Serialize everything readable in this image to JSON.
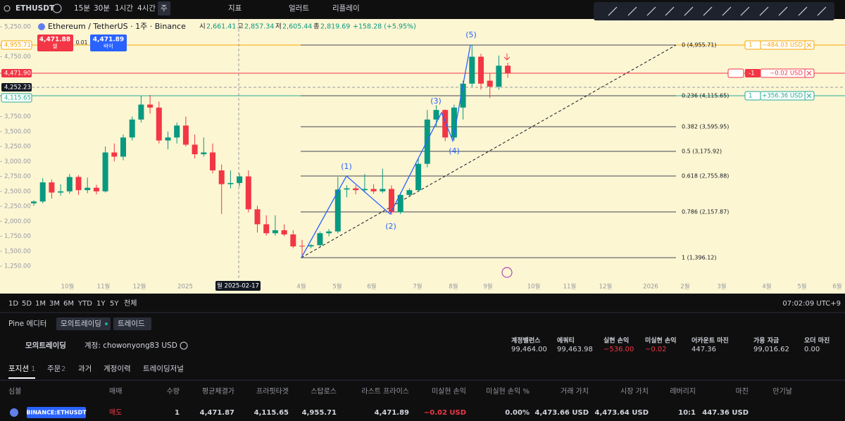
{
  "toolbar": {
    "symbol": "ETHUSDT",
    "intervals": [
      "15분",
      "30분",
      "1시간",
      "4시간",
      "주"
    ],
    "indicators": "지표",
    "alert": "얼러트",
    "replay": "리플레이"
  },
  "legend": {
    "title": "Ethereum / TetherUS · 1주 · Binance",
    "open_label": "시",
    "open": "2,661.41",
    "high_label": "고",
    "high": "2,857.34",
    "low_label": "저",
    "low": "2,605.44",
    "close_label": "종",
    "close": "2,819.69",
    "change": "+158.28 (+5.95%)"
  },
  "trade_buttons": {
    "sell_price": "4,471.88",
    "sell": "셀",
    "spread": "0.01",
    "buy_price": "4,471.89",
    "buy": "바이"
  },
  "price_labels": [
    "4,955.71",
    "4,471.90",
    "4,252.23",
    "4,115.65"
  ],
  "order_lines": [
    {
      "qty": "1",
      "pnl": "−484.03 USD"
    },
    {
      "qty": "-1",
      "pnl": "−0.02 USD"
    },
    {
      "qty": "1",
      "pnl": "+356.36 USD"
    }
  ],
  "fib_levels": [
    "0 (4,955.71)",
    "0.236 (4,115.65)",
    "0.382 (3,595.95)",
    "0.5 (3,175.92)",
    "0.618 (2,755.88)",
    "0.786 (2,157.87)",
    "1 (1,396.12)"
  ],
  "waves": [
    "(1)",
    "(2)",
    "(3)",
    "(4)",
    "(5)"
  ],
  "crosshair_date": "월 2025-02-17",
  "chart_data": {
    "type": "candlestick",
    "open": [
      2300,
      2330,
      2650,
      2480,
      2500,
      2740,
      2520,
      2560,
      2500,
      3150,
      3080,
      3400,
      3700,
      3950,
      3900,
      3350,
      3400,
      3600,
      3280,
      3120,
      3150,
      2850,
      2620,
      2640,
      2750,
      2200,
      1950,
      1800,
      1850,
      1780,
      1590,
      1580,
      1600,
      1800,
      1830,
      2530,
      2550,
      2520,
      2540,
      2500,
      2540,
      2150,
      2440,
      2520,
      2960,
      3700,
      3860,
      3400,
      3900,
      4300,
      4750,
      4350,
      4250,
      4600
    ],
    "high": [
      2350,
      2720,
      2700,
      2620,
      2790,
      2770,
      2730,
      2610,
      3250,
      3300,
      3450,
      3750,
      4100,
      4110,
      4000,
      3500,
      3650,
      3750,
      3450,
      3400,
      3300,
      2950,
      2850,
      2800,
      2850,
      2260,
      2100,
      2100,
      1950,
      1850,
      1690,
      1620,
      1830,
      1870,
      2740,
      2600,
      2600,
      2790,
      2620,
      2880,
      2600,
      2480,
      2550,
      3050,
      3860,
      3940,
      3870,
      3950,
      4350,
      4955,
      4800,
      4480,
      4770,
      4650
    ],
    "low": [
      2260,
      2300,
      2380,
      2430,
      2460,
      2440,
      2470,
      2450,
      2480,
      3000,
      3020,
      3350,
      3650,
      3800,
      3300,
      3200,
      3300,
      3250,
      3050,
      3080,
      2800,
      2120,
      2550,
      2580,
      2150,
      1810,
      1760,
      1760,
      1750,
      1550,
      1396,
      1550,
      1580,
      1750,
      1800,
      2400,
      2450,
      2480,
      2460,
      2470,
      2110,
      2120,
      2420,
      2500,
      2900,
      3580,
      3340,
      3350,
      3700,
      4250,
      4200,
      4060,
      4200,
      4400
    ],
    "close": [
      2330,
      2650,
      2480,
      2500,
      2740,
      2520,
      2560,
      2500,
      3150,
      3080,
      3400,
      3700,
      3950,
      3900,
      3350,
      3400,
      3600,
      3280,
      3120,
      3150,
      2850,
      2620,
      2640,
      2750,
      2200,
      1950,
      1800,
      1850,
      1780,
      1580,
      1580,
      1600,
      1800,
      1830,
      2530,
      2550,
      2520,
      2540,
      2500,
      2540,
      2150,
      2440,
      2520,
      2960,
      3700,
      3860,
      3400,
      3900,
      4300,
      4750,
      4300,
      4250,
      4600,
      4472
    ],
    "colors": {
      "up": "#089981",
      "down": "#f23645"
    },
    "ylim": [
      815,
      5345
    ],
    "yticks": [
      {
        "value": 1250,
        "label": "1,250.00"
      },
      {
        "value": 1500,
        "label": "1,500.00"
      },
      {
        "value": 1750,
        "label": "1,750.00"
      },
      {
        "value": 2000,
        "label": "2,000.00"
      },
      {
        "value": 2250,
        "label": "2,250.00"
      },
      {
        "value": 2500,
        "label": "2,500.00"
      },
      {
        "value": 2750,
        "label": "2,750.00"
      },
      {
        "value": 3000,
        "label": "3,000.00"
      },
      {
        "value": 3250,
        "label": "3,250.00"
      },
      {
        "value": 3500,
        "label": "3,500.00"
      },
      {
        "value": 3750,
        "label": "3,750.00"
      },
      {
        "value": 4750,
        "label": "4,750.00"
      },
      {
        "value": 5250,
        "label": "5,250.00"
      }
    ],
    "x_axis_labels": [
      "10월",
      "11월",
      "12월",
      "2025",
      "4월",
      "5월",
      "6월",
      "7월",
      "8월",
      "9월",
      "10월",
      "11월",
      "12월",
      "2026",
      "2월",
      "3월",
      "4월",
      "5월",
      "6월"
    ]
  },
  "range_bar": {
    "ranges": [
      "1D",
      "5D",
      "1M",
      "3M",
      "6M",
      "YTD",
      "1Y",
      "5Y",
      "전체"
    ],
    "clock": "07:02:09 UTC+9"
  },
  "panel_tabs": [
    "Pine 에디터",
    "모의트레이딩",
    "트레이드"
  ],
  "account": {
    "broker": "모의트레이딩",
    "name": "계정: chowonyong83 USD",
    "stats": [
      {
        "label": "계정밸런스",
        "value": "99,464.00"
      },
      {
        "label": "에쿼티",
        "value": "99,463.98"
      },
      {
        "label": "실현 손익",
        "value": "−536.00"
      },
      {
        "label": "미실현 손익",
        "value": "−0.02"
      },
      {
        "label": "어카운트 마진",
        "value": "447.36"
      },
      {
        "label": "가용 자금",
        "value": "99,016.62"
      },
      {
        "label": "오더 마진",
        "value": "0.00"
      }
    ]
  },
  "account_tabs": [
    {
      "label": "포지션",
      "count": "1"
    },
    {
      "label": "주문",
      "count": "2"
    },
    {
      "label": "과거"
    },
    {
      "label": "계정이력"
    },
    {
      "label": "트레이딩저널"
    }
  ],
  "positions": {
    "columns": [
      "심볼",
      "매매",
      "수량",
      "평균체결가",
      "프라핏타겟",
      "스탑로스",
      "라스트 프라이스",
      "미실현 손익",
      "미실현 손익 %",
      "거래 가치",
      "시장 가치",
      "레버리지",
      "마진",
      "만기날"
    ],
    "rows": [
      [
        "BINANCE:ETHUSDT",
        "매도",
        "1",
        "4,471.87",
        "4,115.65",
        "4,955.71",
        "4,471.89",
        "−0.02 USD",
        "0.00%",
        "4,473.66 USD",
        "4,473.64 USD",
        "10:1",
        "447.36 USD"
      ]
    ]
  }
}
